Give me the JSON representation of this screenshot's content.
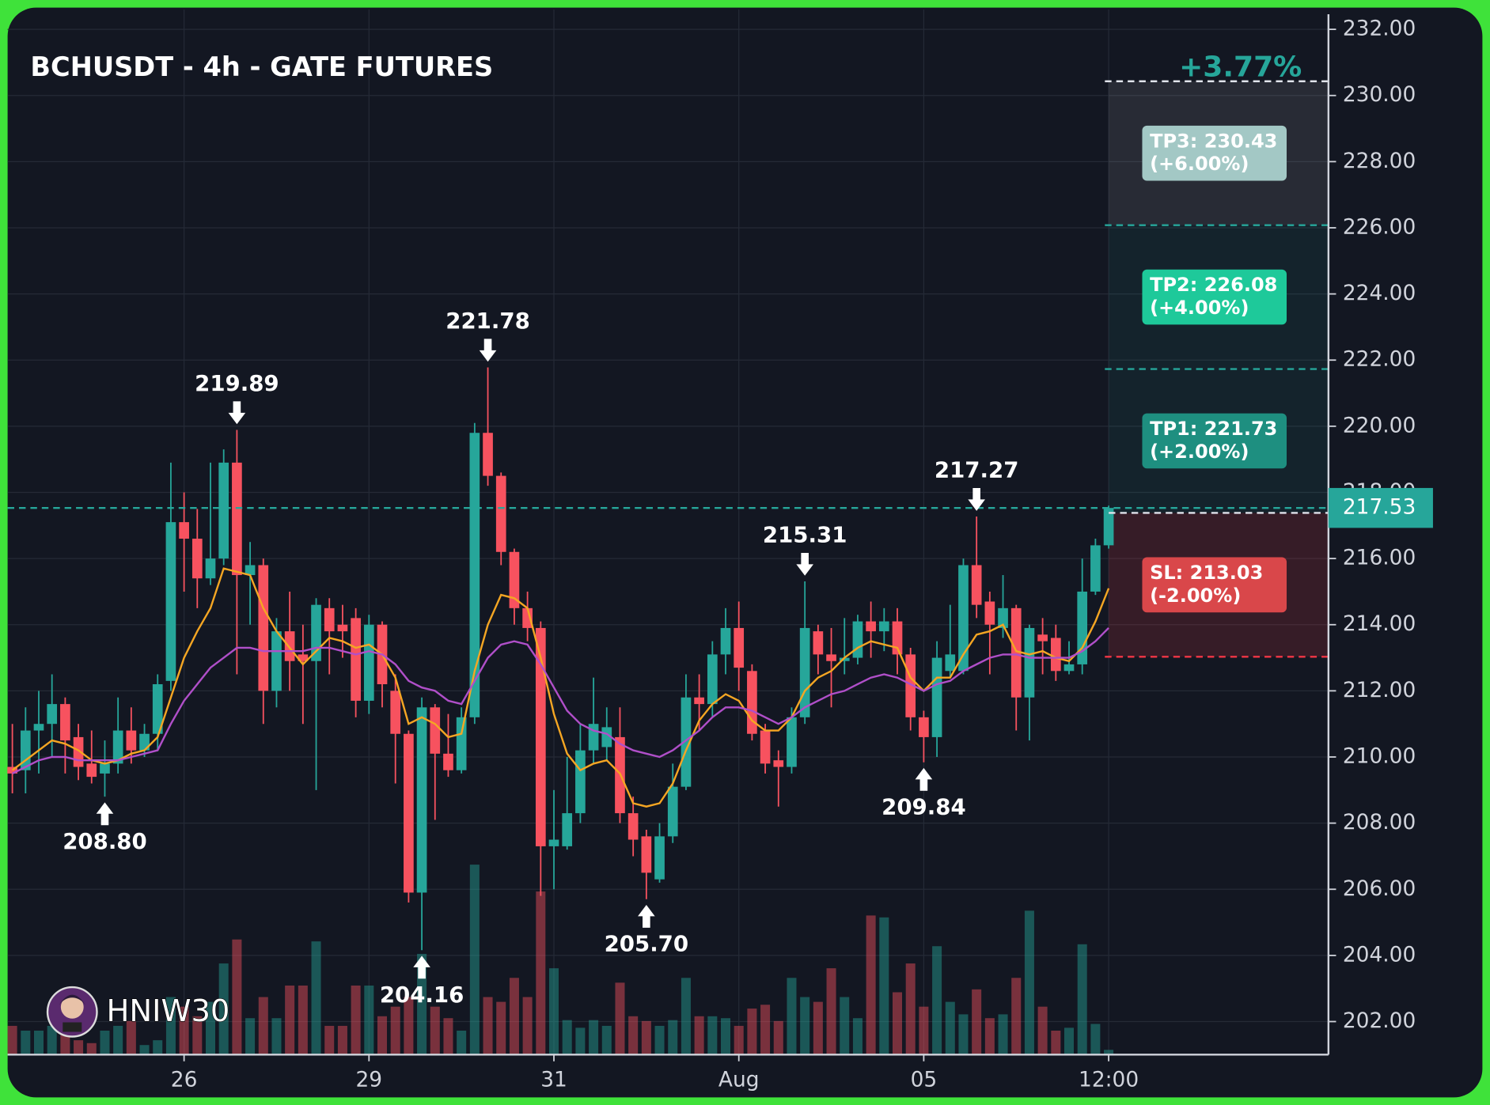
{
  "chart_data": {
    "type": "candlestick",
    "title": "BCHUSDT - 4h - GATE FUTURES",
    "change_label": "+3.77%",
    "watermark": "HNIW30",
    "xlim": [
      -0.36,
      99.64
    ],
    "xticks": [
      {
        "value": 13,
        "label": "26"
      },
      {
        "value": 27,
        "label": "29"
      },
      {
        "value": 41,
        "label": "31"
      },
      {
        "value": 55,
        "label": "Aug"
      },
      {
        "value": 69,
        "label": "05"
      },
      {
        "value": 83,
        "label": "12:00"
      }
    ],
    "ylim": [
      201.0,
      232.6
    ],
    "yticks": [
      {
        "value": 202,
        "label": "202.00"
      },
      {
        "value": 204,
        "label": "204.00"
      },
      {
        "value": 206,
        "label": "206.00"
      },
      {
        "value": 208,
        "label": "208.00"
      },
      {
        "value": 210,
        "label": "210.00"
      },
      {
        "value": 212,
        "label": "212.00"
      },
      {
        "value": 214,
        "label": "214.00"
      },
      {
        "value": 216,
        "label": "216.00"
      },
      {
        "value": 218,
        "label": "218.00"
      },
      {
        "value": 220,
        "label": "220.00"
      },
      {
        "value": 222,
        "label": "222.00"
      },
      {
        "value": 224,
        "label": "224.00"
      },
      {
        "value": 226,
        "label": "226.00"
      },
      {
        "value": 228,
        "label": "228.00"
      },
      {
        "value": 230,
        "label": "230.00"
      },
      {
        "value": 232,
        "label": "232.00"
      }
    ],
    "grid": true,
    "up_color": "#26a69a",
    "down_color": "#f7525f",
    "open": [
      209.7,
      209.6,
      210.8,
      211,
      211.6,
      210.6,
      209.8,
      209.5,
      209.8,
      210.8,
      210.2,
      210.7,
      212.3,
      217.1,
      216.6,
      215.4,
      216,
      218.9,
      215.5,
      215.8,
      212,
      213.8,
      213.1,
      212.9,
      214.5,
      214,
      214.2,
      211.7,
      214,
      212,
      210.7,
      205.9,
      211.5,
      210.1,
      209.6,
      211.2,
      219.8,
      218.5,
      216.2,
      214.5,
      213.9,
      207.3,
      207.3,
      208.3,
      210.2,
      210.3,
      210.6,
      208.3,
      207.6,
      206.3,
      207.6,
      209.1,
      211.8,
      211.6,
      213.1,
      213.9,
      212.6,
      210.8,
      209.9,
      209.7,
      211.2,
      213.8,
      213.1,
      212.9,
      213,
      214.1,
      213.8,
      214.1,
      213.1,
      211.2,
      210.6,
      212.6,
      212.6,
      215.8,
      214.7,
      213.9,
      214.5,
      211.8,
      213.7,
      213.6,
      212.6,
      212.8,
      215,
      216.4
    ],
    "high": [
      211,
      211.5,
      212,
      212.5,
      211.8,
      211,
      210.8,
      210.5,
      211.8,
      211.5,
      211,
      212.5,
      218.9,
      218,
      217.5,
      218.9,
      219.3,
      219.89,
      216.5,
      216,
      214.2,
      215,
      214,
      214.8,
      214.8,
      214.6,
      214.5,
      214.3,
      214.1,
      212.5,
      210.8,
      211.8,
      211.6,
      211.3,
      211.5,
      220.1,
      221.78,
      218.6,
      216.3,
      215,
      214.1,
      209,
      210,
      211,
      212.4,
      211.5,
      211.5,
      208.8,
      207.8,
      208,
      209.8,
      212.5,
      212.5,
      213.5,
      214.5,
      214.7,
      212.8,
      211,
      210.2,
      211.5,
      215.31,
      214,
      213.9,
      214.2,
      214.3,
      214.7,
      214.5,
      214.5,
      213.3,
      211.4,
      213.5,
      214.6,
      216,
      217.27,
      215,
      215.5,
      214.6,
      214,
      214.2,
      214,
      213.5,
      216,
      216.6,
      217.6
    ],
    "low": [
      208.9,
      208.9,
      209.5,
      210,
      209.5,
      209.3,
      209.2,
      208.8,
      209.5,
      209.8,
      210,
      210.2,
      212,
      215,
      214.5,
      215.2,
      215.8,
      212.5,
      214,
      211,
      211.5,
      212,
      211,
      209,
      212.5,
      213,
      211.2,
      211.3,
      211.5,
      209.2,
      205.6,
      204.16,
      208.1,
      209.4,
      209.5,
      211,
      218.2,
      215.8,
      214,
      213.5,
      205.8,
      206,
      207.2,
      208,
      209.8,
      209.9,
      208,
      207,
      205.7,
      206.2,
      207.4,
      209,
      210.8,
      211.2,
      212.5,
      212,
      210.5,
      209.5,
      208.5,
      209.5,
      211,
      212.5,
      211.5,
      212.5,
      212.8,
      213,
      213.2,
      212.5,
      210.8,
      209.84,
      210,
      212.4,
      212.5,
      214.2,
      212.5,
      213.6,
      210.8,
      210.5,
      212.5,
      212.3,
      212.5,
      212.5,
      214.9,
      216.3
    ],
    "close": [
      209.5,
      210.8,
      211,
      211.6,
      210.5,
      209.7,
      209.4,
      209.8,
      210.8,
      210.2,
      210.7,
      212.2,
      217.1,
      216.6,
      215.4,
      216,
      218.9,
      215.5,
      215.8,
      212,
      213.8,
      212.9,
      212.9,
      214.6,
      213.8,
      213.8,
      211.7,
      214,
      212.2,
      210.7,
      205.9,
      211.5,
      210.1,
      209.6,
      211.2,
      219.8,
      218.5,
      216.2,
      214.5,
      213.9,
      207.3,
      207.5,
      208.3,
      210.2,
      211,
      210.9,
      208.3,
      207.5,
      206.5,
      207.6,
      209.1,
      211.8,
      211.6,
      213.1,
      213.9,
      212.7,
      210.7,
      209.8,
      209.7,
      211.2,
      213.9,
      213.1,
      212.9,
      213,
      214.1,
      213.8,
      214.1,
      213.1,
      211.2,
      210.6,
      213,
      213.1,
      215.8,
      214.6,
      214,
      214.5,
      211.8,
      213.9,
      213.5,
      212.6,
      212.8,
      215,
      216.4,
      217.53
    ],
    "volume": [
      30,
      25,
      25,
      30,
      35,
      15,
      12,
      25,
      30,
      35,
      10,
      15,
      60,
      50,
      40,
      55,
      95,
      120,
      38,
      60,
      38,
      72,
      72,
      118,
      30,
      30,
      72,
      72,
      40,
      50,
      60,
      105,
      50,
      38,
      25,
      198,
      60,
      55,
      80,
      60,
      170,
      90,
      36,
      28,
      36,
      30,
      75,
      40,
      35,
      30,
      36,
      80,
      40,
      40,
      38,
      30,
      48,
      52,
      35,
      80,
      60,
      55,
      90,
      60,
      38,
      145,
      143,
      65,
      95,
      50,
      113,
      55,
      42,
      68,
      38,
      42,
      80,
      150,
      50,
      25,
      28,
      115,
      32,
      5
    ],
    "series": [
      {
        "color": "#f5a623",
        "values": [
          209.6,
          209.9,
          210.2,
          210.5,
          210.4,
          210.2,
          209.9,
          209.8,
          209.9,
          210.1,
          210.2,
          210.6,
          211.8,
          213.0,
          213.8,
          214.5,
          215.7,
          215.6,
          215.5,
          214.5,
          213.8,
          213.3,
          212.8,
          213.2,
          213.6,
          213.5,
          213.3,
          213.4,
          213.1,
          212.4,
          211.0,
          211.2,
          211.0,
          210.6,
          210.7,
          212.6,
          214.0,
          214.9,
          214.8,
          214.5,
          213.0,
          211.3,
          210.1,
          209.6,
          209.8,
          209.9,
          209.5,
          208.6,
          208.5,
          208.6,
          209.2,
          210.2,
          211.1,
          211.6,
          211.9,
          211.7,
          211.1,
          210.8,
          210.8,
          211.2,
          212.0,
          212.4,
          212.6,
          213.0,
          213.3,
          213.5,
          213.4,
          213.3,
          212.4,
          212.0,
          212.4,
          212.4,
          213.1,
          213.7,
          213.8,
          214.0,
          213.2,
          213.1,
          213.2,
          213.0,
          212.9,
          213.3,
          214.1,
          215.1
        ]
      },
      {
        "color": "#b04fc9",
        "values": [
          209.5,
          209.7,
          209.9,
          210.0,
          210.0,
          209.9,
          209.9,
          209.9,
          209.9,
          210.0,
          210.1,
          210.2,
          211.0,
          211.7,
          212.2,
          212.7,
          213.0,
          213.3,
          213.3,
          213.2,
          213.2,
          213.2,
          213.2,
          213.3,
          213.3,
          213.2,
          213.1,
          213.2,
          213.1,
          212.8,
          212.3,
          212.1,
          212.0,
          211.7,
          211.6,
          212.3,
          213.0,
          213.4,
          213.5,
          213.4,
          212.8,
          212.1,
          211.4,
          211.0,
          210.8,
          210.7,
          210.4,
          210.2,
          210.1,
          210.0,
          210.2,
          210.5,
          210.8,
          211.2,
          211.5,
          211.5,
          211.4,
          211.2,
          211.0,
          211.2,
          211.5,
          211.7,
          211.9,
          212.0,
          212.2,
          212.4,
          212.5,
          212.4,
          212.2,
          212.0,
          212.2,
          212.3,
          212.6,
          212.8,
          213.0,
          213.1,
          213.1,
          213.0,
          213.0,
          213.0,
          213.0,
          213.2,
          213.5,
          213.9
        ]
      }
    ],
    "annotations": [
      {
        "index": 7,
        "value": 208.8,
        "label": "208.80",
        "position": "below"
      },
      {
        "index": 17,
        "value": 219.89,
        "label": "219.89",
        "position": "above"
      },
      {
        "index": 31,
        "value": 204.16,
        "label": "204.16",
        "position": "below"
      },
      {
        "index": 36,
        "value": 221.78,
        "label": "221.78",
        "position": "above"
      },
      {
        "index": 48,
        "value": 205.7,
        "label": "205.70",
        "position": "below"
      },
      {
        "index": 60,
        "value": 215.31,
        "label": "215.31",
        "position": "above"
      },
      {
        "index": 69,
        "value": 209.84,
        "label": "209.84",
        "position": "below"
      },
      {
        "index": 73,
        "value": 217.27,
        "label": "217.27",
        "position": "above"
      }
    ],
    "last_price": 217.53,
    "entry": 217.38,
    "targets": [
      {
        "value": 230.43,
        "label": "TP3: 230.43",
        "percent": "(+6.00%)",
        "color": "#a3c8c5"
      },
      {
        "value": 226.08,
        "label": "TP2: 226.08",
        "percent": "(+4.00%)",
        "color": "#1ec99a"
      },
      {
        "value": 221.73,
        "label": "TP1: 221.73",
        "percent": "(+2.00%)",
        "color": "#1e8f80"
      }
    ],
    "stop": {
      "value": 213.03,
      "label": "SL: 213.03",
      "percent": "(-2.00%)",
      "color": "#d9474a"
    }
  }
}
